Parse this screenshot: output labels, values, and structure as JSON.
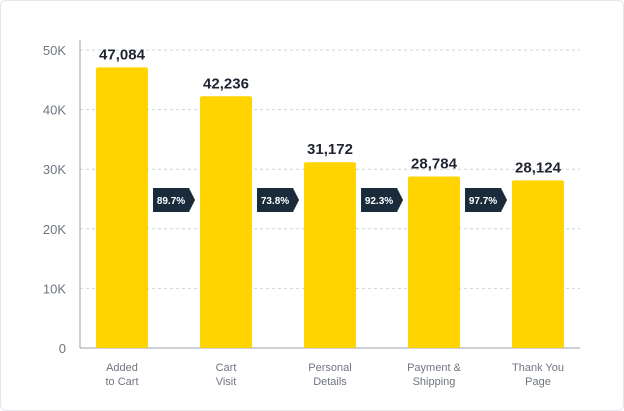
{
  "chart_data": {
    "type": "bar",
    "categories": [
      [
        "Added",
        "to Cart"
      ],
      [
        "Cart",
        "Visit"
      ],
      [
        "Personal",
        "Details"
      ],
      [
        "Payment &",
        "Shipping"
      ],
      [
        "Thank You",
        "Page"
      ]
    ],
    "values": [
      47084,
      42236,
      31172,
      28784,
      28124
    ],
    "value_labels": [
      "47,084",
      "42,236",
      "31,172",
      "28,784",
      "28,124"
    ],
    "conversion_labels": [
      "89.7%",
      "73.8%",
      "92.3%",
      "97.7%"
    ],
    "yticks": [
      0,
      10000,
      20000,
      30000,
      40000,
      50000
    ],
    "ytick_labels": [
      "0",
      "10K",
      "20K",
      "30K",
      "40K",
      "50K"
    ],
    "ylim": [
      0,
      50000
    ],
    "grid": true,
    "title": "",
    "xlabel": "",
    "ylabel": "",
    "colors": {
      "bar": "#ffd400",
      "badge": "#1a2b3c",
      "grid": "#cfd3da",
      "axis": "#9aa0ab"
    }
  }
}
